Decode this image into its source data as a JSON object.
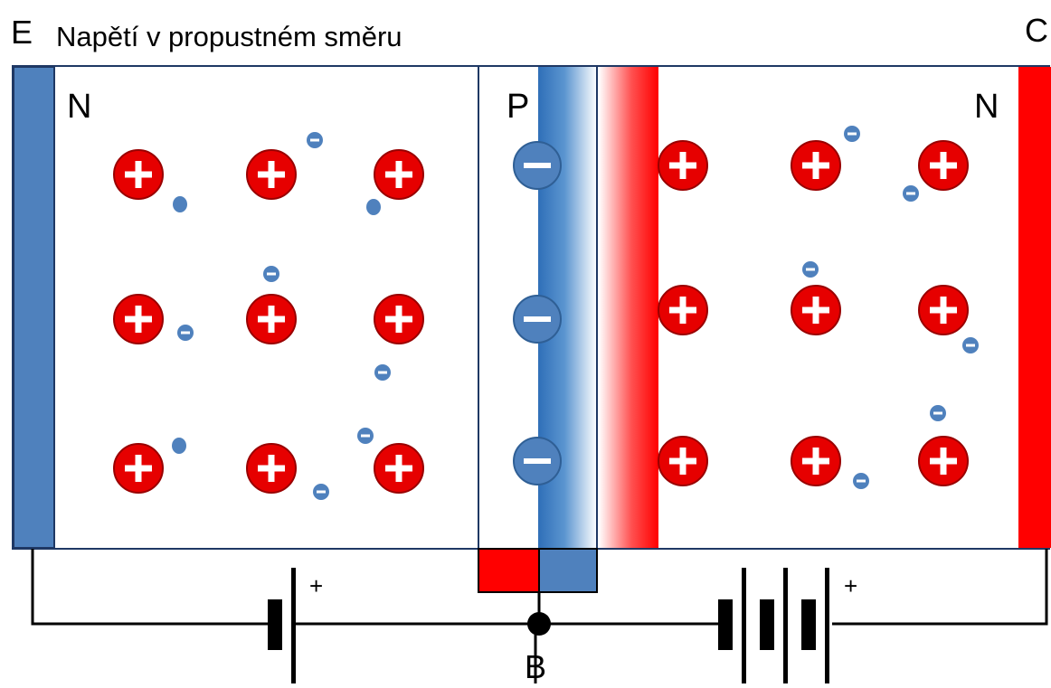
{
  "labels": {
    "emitter": "E",
    "collector": "C",
    "base": "B",
    "title": "Napětí v propustném směru",
    "left_region": "N",
    "middle_region": "P",
    "right_region": "N",
    "battery_left_plus": "+",
    "battery_right_plus": "+"
  },
  "colors": {
    "blue": "#4f81bd",
    "blue_dark": "#2f5f95",
    "red": "#ff0000",
    "ion_red": "#e60000",
    "line": "#1f3864",
    "wire": "#000000"
  },
  "icons": {
    "positive_ion": "plus-circle-icon",
    "negative_ion": "minus-circle-icon",
    "electron": "electron-dot-icon"
  }
}
